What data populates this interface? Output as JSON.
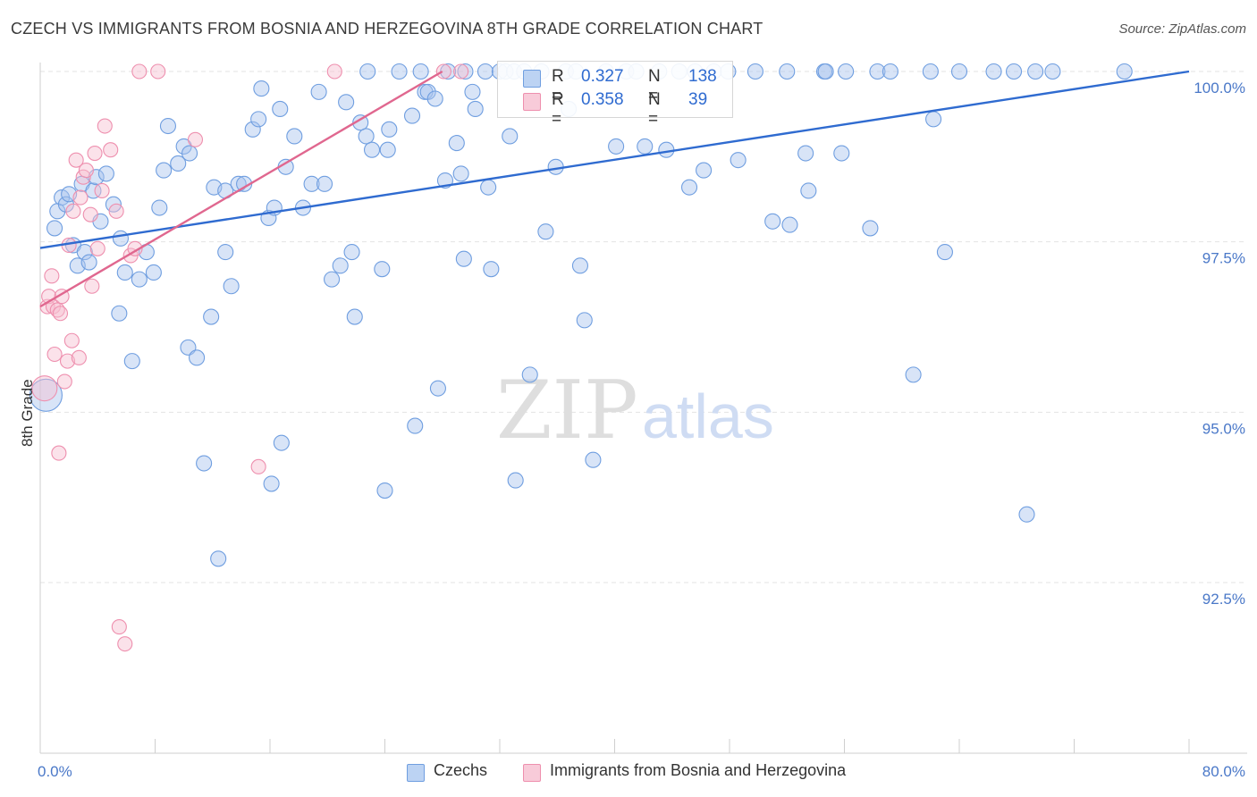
{
  "title": "CZECH VS IMMIGRANTS FROM BOSNIA AND HERZEGOVINA 8TH GRADE CORRELATION CHART",
  "source": "Source: ZipAtlas.com",
  "watermark": {
    "zip": "ZIP",
    "atlas": "atlas"
  },
  "colors": {
    "blue_fill": "#a9c4ee",
    "blue_stroke": "#6f9ee0",
    "blue_line": "#2f6bd0",
    "pink_fill": "#f6bfd0",
    "pink_stroke": "#ee8fae",
    "pink_line": "#e0678f",
    "grid": "#e3e3e3",
    "tick_text": "#4a78c8"
  },
  "legend": {
    "rows": [
      {
        "r_label": "R =",
        "r_value": "0.327",
        "n_label": "N =",
        "n_value": "138"
      },
      {
        "r_label": "R =",
        "r_value": "0.358",
        "n_label": "N =",
        "n_value": "39"
      }
    ]
  },
  "bottom_legend": {
    "czechs": "Czechs",
    "bosnia": "Immigrants from Bosnia and Herzegovina"
  },
  "chart_data": {
    "type": "scatter",
    "title": "CZECH VS IMMIGRANTS FROM BOSNIA AND HERZEGOVINA 8TH GRADE CORRELATION CHART",
    "xlabel": "",
    "ylabel": "8th Grade",
    "xlim": [
      0,
      80
    ],
    "ylim": [
      90.0,
      100.2
    ],
    "x_tick_labels": [
      "0.0%",
      "80.0%"
    ],
    "y_ticks": [
      100.0,
      97.5,
      95.0,
      92.5
    ],
    "y_tick_labels": [
      "100.0%",
      "97.5%",
      "95.0%",
      "92.5%"
    ],
    "grid": true,
    "legend_position": "top-center",
    "series": [
      {
        "name": "Czechs",
        "color": "#6f9ee0",
        "trend": {
          "x": [
            0,
            80
          ],
          "y": [
            97.41,
            100.0
          ]
        },
        "points": [
          [
            0.4,
            95.25
          ],
          [
            1.0,
            97.7
          ],
          [
            1.2,
            97.95
          ],
          [
            1.5,
            98.15
          ],
          [
            1.8,
            98.05
          ],
          [
            2.0,
            98.2
          ],
          [
            2.3,
            97.45
          ],
          [
            2.6,
            97.15
          ],
          [
            2.9,
            98.35
          ],
          [
            3.1,
            97.35
          ],
          [
            3.4,
            97.2
          ],
          [
            3.7,
            98.25
          ],
          [
            3.9,
            98.45
          ],
          [
            4.2,
            97.8
          ],
          [
            4.6,
            98.5
          ],
          [
            5.1,
            98.05
          ],
          [
            5.5,
            96.45
          ],
          [
            5.6,
            97.55
          ],
          [
            5.9,
            97.05
          ],
          [
            6.4,
            95.75
          ],
          [
            6.9,
            96.95
          ],
          [
            7.4,
            97.35
          ],
          [
            7.9,
            97.05
          ],
          [
            8.3,
            98.0
          ],
          [
            8.6,
            98.55
          ],
          [
            8.9,
            99.2
          ],
          [
            9.6,
            98.65
          ],
          [
            10.0,
            98.9
          ],
          [
            10.4,
            98.8
          ],
          [
            10.3,
            95.95
          ],
          [
            10.9,
            95.8
          ],
          [
            11.4,
            94.25
          ],
          [
            11.9,
            96.4
          ],
          [
            12.4,
            92.85
          ],
          [
            12.1,
            98.3
          ],
          [
            12.9,
            98.25
          ],
          [
            12.9,
            97.35
          ],
          [
            13.3,
            96.85
          ],
          [
            13.8,
            98.35
          ],
          [
            14.2,
            98.35
          ],
          [
            14.8,
            99.15
          ],
          [
            15.2,
            99.3
          ],
          [
            15.4,
            99.75
          ],
          [
            15.9,
            97.85
          ],
          [
            16.3,
            98.0
          ],
          [
            16.7,
            99.45
          ],
          [
            16.8,
            94.55
          ],
          [
            16.1,
            93.95
          ],
          [
            17.1,
            98.6
          ],
          [
            17.7,
            99.05
          ],
          [
            18.3,
            98.0
          ],
          [
            18.9,
            98.35
          ],
          [
            19.4,
            99.7
          ],
          [
            19.8,
            98.35
          ],
          [
            20.3,
            96.95
          ],
          [
            20.9,
            97.15
          ],
          [
            21.3,
            99.55
          ],
          [
            21.7,
            97.35
          ],
          [
            21.9,
            96.4
          ],
          [
            22.3,
            99.25
          ],
          [
            22.8,
            100.0
          ],
          [
            22.7,
            99.05
          ],
          [
            23.1,
            98.85
          ],
          [
            23.8,
            97.1
          ],
          [
            24.0,
            93.85
          ],
          [
            24.3,
            99.15
          ],
          [
            24.2,
            98.85
          ],
          [
            25.0,
            100.0
          ],
          [
            26.5,
            100.0
          ],
          [
            25.9,
            99.35
          ],
          [
            26.1,
            94.8
          ],
          [
            26.8,
            99.7
          ],
          [
            27.0,
            99.7
          ],
          [
            27.5,
            99.6
          ],
          [
            27.7,
            95.35
          ],
          [
            28.2,
            98.4
          ],
          [
            28.4,
            100.0
          ],
          [
            29.0,
            98.95
          ],
          [
            29.3,
            98.5
          ],
          [
            29.5,
            97.25
          ],
          [
            30.1,
            99.7
          ],
          [
            30.3,
            99.45
          ],
          [
            31.0,
            100.0
          ],
          [
            31.2,
            98.3
          ],
          [
            31.4,
            97.1
          ],
          [
            32.0,
            100.0
          ],
          [
            32.4,
            100.0
          ],
          [
            32.7,
            99.05
          ],
          [
            33.0,
            100.0
          ],
          [
            33.1,
            94.0
          ],
          [
            33.7,
            100.0
          ],
          [
            34.1,
            95.55
          ],
          [
            34.9,
            100.0
          ],
          [
            35.2,
            97.65
          ],
          [
            35.9,
            98.6
          ],
          [
            36.6,
            100.0
          ],
          [
            36.8,
            99.45
          ],
          [
            37.3,
            100.0
          ],
          [
            37.6,
            97.15
          ],
          [
            37.9,
            96.35
          ],
          [
            38.5,
            94.3
          ],
          [
            39.4,
            100.0
          ],
          [
            40.1,
            98.9
          ],
          [
            40.8,
            100.0
          ],
          [
            41.5,
            100.0
          ],
          [
            42.1,
            98.9
          ],
          [
            43.1,
            100.0
          ],
          [
            43.6,
            98.85
          ],
          [
            44.5,
            100.0
          ],
          [
            45.2,
            98.3
          ],
          [
            45.6,
            100.0
          ],
          [
            46.2,
            98.55
          ],
          [
            46.9,
            100.0
          ],
          [
            47.9,
            100.0
          ],
          [
            48.6,
            98.7
          ],
          [
            49.8,
            100.0
          ],
          [
            51.0,
            97.8
          ],
          [
            52.0,
            100.0
          ],
          [
            52.2,
            97.75
          ],
          [
            53.3,
            98.8
          ],
          [
            53.5,
            98.25
          ],
          [
            54.6,
            100.0
          ],
          [
            54.7,
            100.0
          ],
          [
            55.8,
            98.8
          ],
          [
            56.1,
            100.0
          ],
          [
            57.8,
            97.7
          ],
          [
            58.3,
            100.0
          ],
          [
            59.2,
            100.0
          ],
          [
            60.8,
            95.55
          ],
          [
            62.0,
            100.0
          ],
          [
            62.2,
            99.3
          ],
          [
            63.0,
            97.35
          ],
          [
            64.0,
            100.0
          ],
          [
            66.4,
            100.0
          ],
          [
            67.8,
            100.0
          ],
          [
            69.3,
            100.0
          ],
          [
            68.7,
            93.5
          ],
          [
            70.5,
            100.0
          ],
          [
            75.5,
            100.0
          ],
          [
            29.6,
            100.0
          ]
        ]
      },
      {
        "name": "Immigrants from Bosnia and Herzegovina",
        "color": "#ee8fae",
        "trend": {
          "x": [
            0,
            28.0
          ],
          "y": [
            96.55,
            100.0
          ]
        },
        "points": [
          [
            0.3,
            95.35
          ],
          [
            0.5,
            96.55
          ],
          [
            0.6,
            96.7
          ],
          [
            0.8,
            97.0
          ],
          [
            0.9,
            96.55
          ],
          [
            1.0,
            95.85
          ],
          [
            1.2,
            96.5
          ],
          [
            1.3,
            94.4
          ],
          [
            1.4,
            96.45
          ],
          [
            1.5,
            96.7
          ],
          [
            1.7,
            95.45
          ],
          [
            1.9,
            95.75
          ],
          [
            2.0,
            97.45
          ],
          [
            2.2,
            96.05
          ],
          [
            2.3,
            97.95
          ],
          [
            2.5,
            98.7
          ],
          [
            2.7,
            95.8
          ],
          [
            2.8,
            98.15
          ],
          [
            3.0,
            98.45
          ],
          [
            3.2,
            98.55
          ],
          [
            3.5,
            97.9
          ],
          [
            3.6,
            96.85
          ],
          [
            3.8,
            98.8
          ],
          [
            4.0,
            97.4
          ],
          [
            4.3,
            98.25
          ],
          [
            4.5,
            99.2
          ],
          [
            4.9,
            98.85
          ],
          [
            5.3,
            97.95
          ],
          [
            5.5,
            91.85
          ],
          [
            5.9,
            91.6
          ],
          [
            6.3,
            97.3
          ],
          [
            6.6,
            97.4
          ],
          [
            6.9,
            100.0
          ],
          [
            8.2,
            100.0
          ],
          [
            10.8,
            99.0
          ],
          [
            15.2,
            94.2
          ],
          [
            20.5,
            100.0
          ],
          [
            28.1,
            100.0
          ],
          [
            29.3,
            100.0
          ]
        ]
      }
    ]
  }
}
